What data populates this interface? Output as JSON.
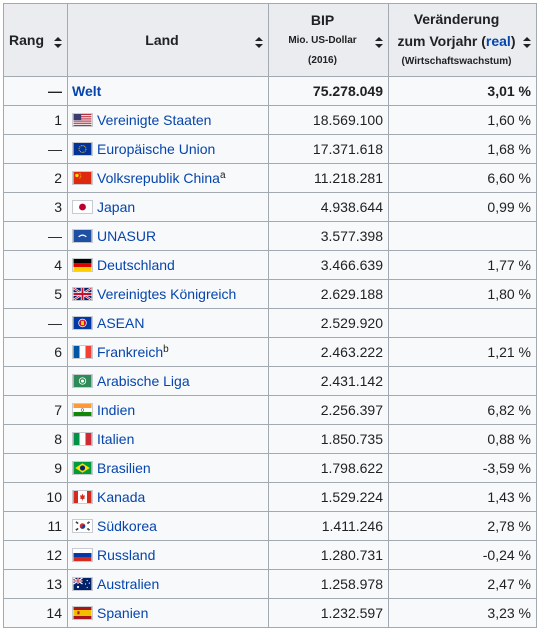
{
  "header": {
    "rang": "Rang",
    "land": "Land",
    "bip_title": "BIP",
    "bip_unit": "Mio. US-Dollar",
    "bip_year": "(2016)",
    "change_l1": "Veränderung",
    "change_l2_pre": "zum Vorjahr (",
    "change_l2_link": "real",
    "change_l2_post": ")",
    "change_l3": "(Wirtschaftswachstum)"
  },
  "rows": [
    {
      "rank": "—",
      "name": "Welt",
      "flag": "none",
      "bip": "75.278.049",
      "change": "3,01 %",
      "note": ""
    },
    {
      "rank": "1",
      "name": "Vereinigte Staaten",
      "flag": "us-flag-icon",
      "bip": "18.569.100",
      "change": "1,60 %",
      "note": ""
    },
    {
      "rank": "—",
      "name": "Europäische Union",
      "flag": "eu-flag-icon",
      "bip": "17.371.618",
      "change": "1,68 %",
      "note": ""
    },
    {
      "rank": "2",
      "name": "Volksrepublik China",
      "flag": "cn-flag-icon",
      "bip": "11.218.281",
      "change": "6,60 %",
      "note": "a"
    },
    {
      "rank": "3",
      "name": "Japan",
      "flag": "jp-flag-icon",
      "bip": "4.938.644",
      "change": "0,99 %",
      "note": ""
    },
    {
      "rank": "—",
      "name": "UNASUR",
      "flag": "unasur-flag-icon",
      "bip": "3.577.398",
      "change": "",
      "note": ""
    },
    {
      "rank": "4",
      "name": "Deutschland",
      "flag": "de-flag-icon",
      "bip": "3.466.639",
      "change": "1,77 %",
      "note": ""
    },
    {
      "rank": "5",
      "name": "Vereinigtes Königreich",
      "flag": "gb-flag-icon",
      "bip": "2.629.188",
      "change": "1,80 %",
      "note": ""
    },
    {
      "rank": "—",
      "name": "ASEAN",
      "flag": "asean-flag-icon",
      "bip": "2.529.920",
      "change": "",
      "note": ""
    },
    {
      "rank": "6",
      "name": "Frankreich",
      "flag": "fr-flag-icon",
      "bip": "2.463.222",
      "change": "1,21 %",
      "note": "b"
    },
    {
      "rank": "",
      "name": "Arabische Liga",
      "flag": "arableague-flag-icon",
      "bip": "2.431.142",
      "change": "",
      "note": ""
    },
    {
      "rank": "7",
      "name": "Indien",
      "flag": "in-flag-icon",
      "bip": "2.256.397",
      "change": "6,82 %",
      "note": ""
    },
    {
      "rank": "8",
      "name": "Italien",
      "flag": "it-flag-icon",
      "bip": "1.850.735",
      "change": "0,88 %",
      "note": ""
    },
    {
      "rank": "9",
      "name": "Brasilien",
      "flag": "br-flag-icon",
      "bip": "1.798.622",
      "change": "-3,59 %",
      "note": ""
    },
    {
      "rank": "10",
      "name": "Kanada",
      "flag": "ca-flag-icon",
      "bip": "1.529.224",
      "change": "1,43 %",
      "note": ""
    },
    {
      "rank": "11",
      "name": "Südkorea",
      "flag": "kr-flag-icon",
      "bip": "1.411.246",
      "change": "2,78 %",
      "note": ""
    },
    {
      "rank": "12",
      "name": "Russland",
      "flag": "ru-flag-icon",
      "bip": "1.280.731",
      "change": "-0,24 %",
      "note": ""
    },
    {
      "rank": "13",
      "name": "Australien",
      "flag": "au-flag-icon",
      "bip": "1.258.978",
      "change": "2,47 %",
      "note": ""
    },
    {
      "rank": "14",
      "name": "Spanien",
      "flag": "es-flag-icon",
      "bip": "1.232.597",
      "change": "3,23 %",
      "note": ""
    }
  ],
  "colors": {
    "link": "#0645ad",
    "header_bg": "#eaecf0",
    "cell_bg": "#f8f9fa",
    "border": "#a2a9b1"
  }
}
